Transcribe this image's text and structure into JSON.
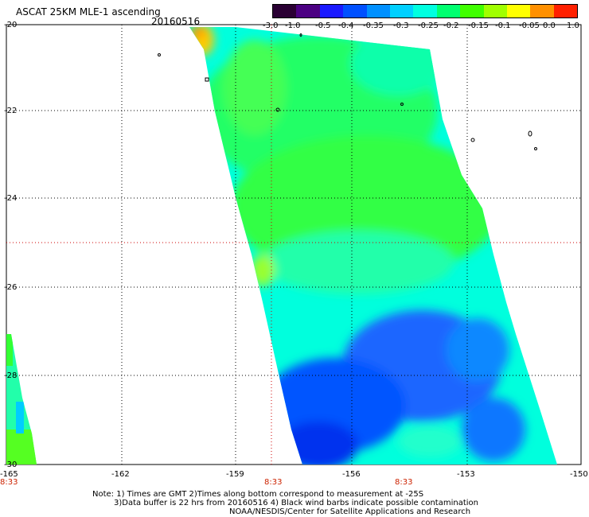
{
  "header": {
    "title": "ASCAT 25KM MLE-1 ascending",
    "date": "20160516"
  },
  "colorbar": {
    "ticks": [
      "-3.0",
      "-1.0",
      "-0.5",
      "-0.4",
      "-0.35",
      "-0.3",
      "-0.25",
      "-0.2",
      "-0.15",
      "-0.1",
      "-0.05",
      "0.0",
      "1.0"
    ],
    "colors": [
      "#2a0033",
      "#4b0082",
      "#1a1aff",
      "#0050ff",
      "#0090ff",
      "#00d0ff",
      "#00ffe0",
      "#00ff70",
      "#40ff00",
      "#a0ff00",
      "#ffff00",
      "#ff9000",
      "#ff2000"
    ]
  },
  "axes": {
    "lat_labels": [
      "-20",
      "-22",
      "-24",
      "-26",
      "-28",
      "-30"
    ],
    "lon_labels": [
      "-165",
      "-162",
      "-159",
      "-156",
      "-153",
      "-150"
    ],
    "time_labels": [
      "8:33",
      "8:33",
      "8:33"
    ]
  },
  "notes": {
    "line1": "Note: 1) Times are GMT 2)Times along bottom correspond to measurement at -25S",
    "line2": "3)Data buffer is 22 hrs from 20160516 4) Black wind barbs indicate possible contamination",
    "line3": "NOAA/NESDIS/Center for Satellite Applications and Research"
  },
  "swath": {
    "legend_colors": {
      "green": "#33ff33",
      "cyan": "#00ffdd",
      "blue": "#1166ff",
      "orange": "#ffaa00"
    }
  }
}
